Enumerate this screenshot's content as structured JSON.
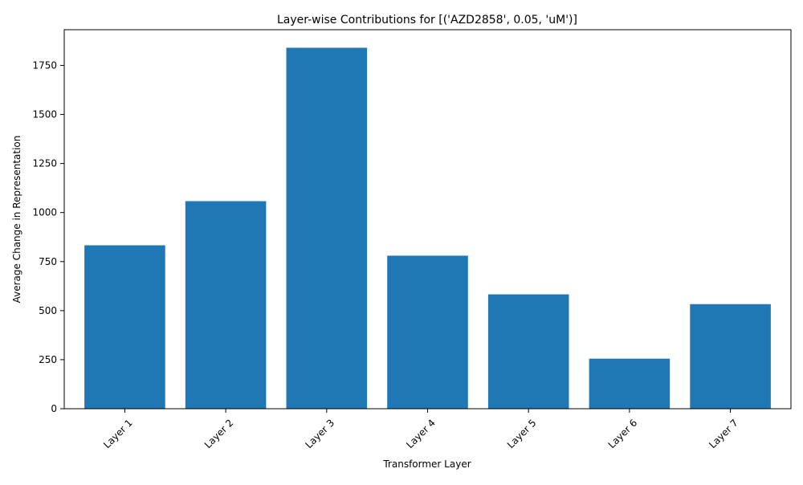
{
  "chart_data": {
    "type": "bar",
    "title": "Layer-wise Contributions for [('AZD2858', 0.05, 'uM')]",
    "xlabel": "Transformer Layer",
    "ylabel": "Average Change in Representation",
    "categories": [
      "Layer 1",
      "Layer 2",
      "Layer 3",
      "Layer 4",
      "Layer 5",
      "Layer 6",
      "Layer 7"
    ],
    "values": [
      833,
      1058,
      1840,
      780,
      583,
      255,
      533
    ],
    "ylim": [
      0,
      1932
    ],
    "yticks": [
      0,
      250,
      500,
      750,
      1000,
      1250,
      1500,
      1750
    ],
    "ytick_labels": [
      "0",
      "250",
      "500",
      "750",
      "1000",
      "1250",
      "1500",
      "1750"
    ],
    "x_tick_rotation": 45,
    "grid": false,
    "legend": "none",
    "colors": {
      "bar": "#1f77b4",
      "axis": "#000000",
      "background": "#ffffff"
    }
  }
}
